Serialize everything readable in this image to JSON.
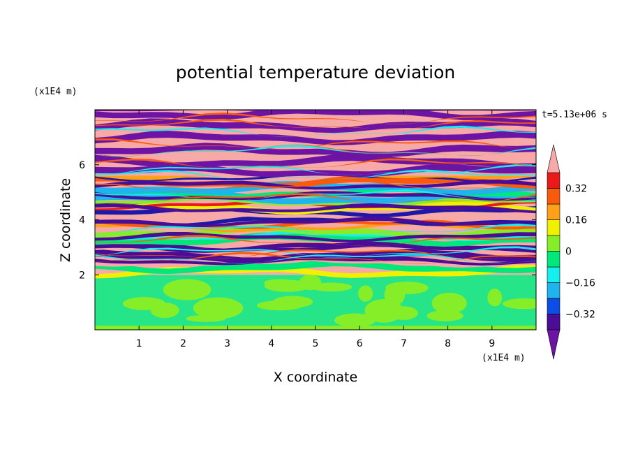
{
  "chart_data": {
    "type": "heatmap",
    "title": "potential temperature deviation",
    "xlabel": "X coordinate",
    "ylabel": "Z coordinate",
    "x_unit": "(x1E4 m)",
    "y_unit": "(x1E4 m)",
    "time_label": "t=5.13e+06 s",
    "x_ticks": [
      "1",
      "2",
      "3",
      "4",
      "5",
      "6",
      "7",
      "8",
      "9"
    ],
    "y_ticks": [
      "2",
      "4",
      "6"
    ],
    "xlim": [
      0,
      10
    ],
    "ylim": [
      0,
      8
    ],
    "colorbar": {
      "tick_labels": [
        "0.32",
        "0.16",
        "0",
        "−0.16",
        "−0.32"
      ],
      "tick_values": [
        0.32,
        0.16,
        0,
        -0.16,
        -0.32
      ],
      "levels": [
        -0.4,
        -0.32,
        -0.24,
        -0.16,
        -0.08,
        0,
        0.08,
        0.16,
        0.24,
        0.32,
        0.4
      ],
      "colors": [
        "#4b0d96",
        "#1c18a8",
        "#0a4ee6",
        "#1fb4ee",
        "#15f0ee",
        "#00e87a",
        "#86ee28",
        "#f0f000",
        "#fea018",
        "#fa5a0c",
        "#e81a1a",
        "#f6a9a6"
      ],
      "over_color": "#f6a9a6",
      "under_color": "#6e14a4"
    },
    "regions": [
      {
        "z_range": [
          0,
          2
        ],
        "description_level": "near zero",
        "dominant_colors": [
          "#26e488",
          "#86ee28"
        ]
      },
      {
        "z_range": [
          2,
          5.5
        ],
        "description_level": "mixed -0.4 to 0.4",
        "dominant_colors": [
          "#f6a9a6",
          "#4b0d96",
          "#f0f000",
          "#fa5a0c",
          "#15f0ee"
        ]
      },
      {
        "z_range": [
          5.5,
          8
        ],
        "description_level": "alternating above 0.4 and below -0.4",
        "dominant_colors": [
          "#f6a9a6",
          "#6e14a4"
        ]
      }
    ]
  }
}
